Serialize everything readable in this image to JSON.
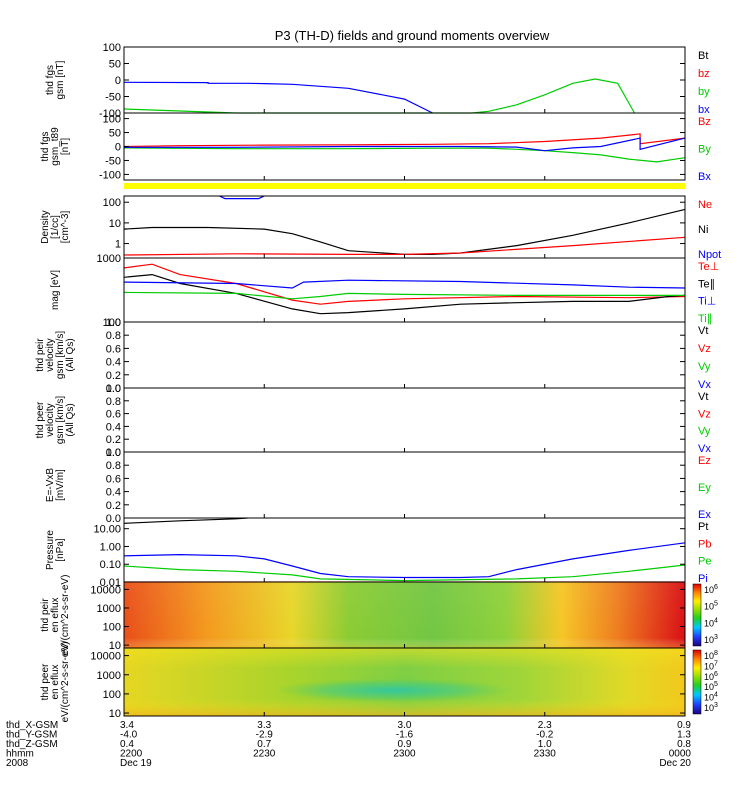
{
  "title": "P3 (TH-D) fields and ground moments overview",
  "chart_data": [
    {
      "type": "line",
      "ylabel": "thd fgs gsm [nT]",
      "ylim": [
        -100,
        100
      ],
      "yticks": [
        "100",
        "50",
        "0",
        "-50",
        "-100"
      ],
      "legend": [
        {
          "name": "Bt",
          "color": "#000000"
        },
        {
          "name": "bz",
          "color": "#ff0000"
        },
        {
          "name": "by",
          "color": "#00cc00"
        },
        {
          "name": "bx",
          "color": "#0000ff"
        }
      ],
      "series": [
        {
          "name": "bx",
          "color": "#0000ff",
          "x": [
            0,
            0.15,
            0.15,
            0.22,
            0.25,
            0.3,
            0.4,
            0.5,
            0.55
          ],
          "y": [
            -7,
            -8,
            -10,
            -10,
            -11,
            -13,
            -25,
            -58,
            -100
          ]
        },
        {
          "name": "by",
          "color": "#00cc00",
          "x": [
            0,
            0.1,
            0.2,
            0.3,
            0.62,
            0.65,
            0.7,
            0.75,
            0.8,
            0.84,
            0.88,
            0.91
          ],
          "y": [
            -88,
            -94,
            -100,
            -100,
            -100,
            -95,
            -75,
            -45,
            -10,
            3,
            -10,
            -100
          ]
        }
      ]
    },
    {
      "type": "line",
      "ylabel": "thd fgs gsm_t89 [nT]",
      "ylim": [
        -120,
        120
      ],
      "yticks": [
        "100",
        "50",
        "0",
        "-50",
        "-100"
      ],
      "legend": [
        {
          "name": "Bz",
          "color": "#ff0000"
        },
        {
          "name": "By",
          "color": "#00cc00"
        },
        {
          "name": "Bx",
          "color": "#0000ff"
        }
      ],
      "series": [
        {
          "name": "Bz",
          "color": "#ff0000",
          "x": [
            0,
            0.1,
            0.25,
            0.4,
            0.55,
            0.65,
            0.75,
            0.85,
            0.92,
            0.92,
            1.0
          ],
          "y": [
            0,
            3,
            5,
            6,
            8,
            10,
            18,
            30,
            45,
            10,
            30
          ]
        },
        {
          "name": "By",
          "color": "#00cc00",
          "x": [
            0,
            0.2,
            0.4,
            0.55,
            0.65,
            0.7,
            0.75,
            0.8,
            0.85,
            0.9,
            0.95,
            1.0
          ],
          "y": [
            -5,
            -8,
            -8,
            -6,
            -6,
            -10,
            -15,
            -22,
            -30,
            -45,
            -55,
            -40
          ]
        },
        {
          "name": "Bx",
          "color": "#0000ff",
          "x": [
            0,
            0.2,
            0.4,
            0.6,
            0.7,
            0.75,
            0.8,
            0.85,
            0.92,
            0.92,
            1.0
          ],
          "y": [
            -3,
            -3,
            0,
            0,
            -2,
            -15,
            -5,
            0,
            30,
            -10,
            30
          ]
        }
      ]
    },
    {
      "type": "line",
      "ylabel": "Density [1/cc] [cm^-3]",
      "yscale": "log",
      "ylim": [
        0.2,
        200
      ],
      "yticks": [
        "100",
        "10",
        "1"
      ],
      "legend": [
        {
          "name": "Ne",
          "color": "#ff0000"
        },
        {
          "name": "Ni",
          "color": "#000000"
        },
        {
          "name": "Npot",
          "color": "#0000ff"
        }
      ],
      "series": [
        {
          "name": "Ni",
          "color": "#000000",
          "x": [
            0,
            0.05,
            0.15,
            0.25,
            0.3,
            0.35,
            0.4,
            0.5,
            0.55,
            0.6,
            0.7,
            0.8,
            0.9,
            1.0
          ],
          "y": [
            5,
            6,
            6,
            5,
            3,
            1.2,
            0.45,
            0.3,
            0.3,
            0.35,
            0.8,
            2.5,
            10,
            45
          ]
        },
        {
          "name": "Ne",
          "color": "#ff0000",
          "x": [
            0,
            0.2,
            0.4,
            0.5,
            0.6,
            0.8,
            1.0
          ],
          "y": [
            0.28,
            0.32,
            0.3,
            0.3,
            0.35,
            0.8,
            2
          ]
        },
        {
          "name": "Npot",
          "color": "#0000ff",
          "x": [
            0.17,
            0.18,
            0.24,
            0.25
          ],
          "y": [
            200,
            150,
            150,
            200
          ]
        }
      ]
    },
    {
      "type": "line",
      "ylabel": "mag [eV]",
      "yscale": "log",
      "ylim": [
        100,
        1000
      ],
      "yticks": [
        "1000",
        "100"
      ],
      "legend": [
        {
          "name": "Te⊥",
          "color": "#ff0000"
        },
        {
          "name": "Te∥",
          "color": "#000000"
        },
        {
          "name": "Ti⊥",
          "color": "#0000ff"
        },
        {
          "name": "Ti∥",
          "color": "#00cc00"
        }
      ],
      "series": [
        {
          "name": "Te⊥",
          "color": "#ff0000",
          "x": [
            0,
            0.05,
            0.1,
            0.2,
            0.3,
            0.35,
            0.4,
            0.5,
            0.7,
            0.9,
            1.0
          ],
          "y": [
            700,
            800,
            550,
            400,
            220,
            190,
            210,
            230,
            250,
            240,
            250
          ]
        },
        {
          "name": "Te∥",
          "color": "#000000",
          "x": [
            0,
            0.05,
            0.1,
            0.2,
            0.3,
            0.35,
            0.4,
            0.5,
            0.6,
            0.7,
            0.8,
            0.9,
            0.97,
            1.0
          ],
          "y": [
            500,
            550,
            400,
            280,
            160,
            135,
            140,
            160,
            190,
            200,
            210,
            210,
            250,
            260
          ]
        },
        {
          "name": "Ti⊥",
          "color": "#0000ff",
          "x": [
            0,
            0.2,
            0.3,
            0.32,
            0.4,
            0.6,
            0.8,
            0.9,
            1.0
          ],
          "y": [
            420,
            400,
            340,
            420,
            450,
            430,
            380,
            350,
            340
          ]
        },
        {
          "name": "Ti∥",
          "color": "#00cc00",
          "x": [
            0,
            0.2,
            0.3,
            0.35,
            0.4,
            0.5,
            0.7,
            0.9,
            1.0
          ],
          "y": [
            290,
            280,
            230,
            250,
            280,
            270,
            260,
            260,
            260
          ]
        }
      ]
    },
    {
      "type": "line",
      "ylabel": "thd peir velocity gsm [km/s] (All Qs)",
      "ylim": [
        0,
        1
      ],
      "yticks": [
        "1.0",
        "0.8",
        "0.6",
        "0.4",
        "0.2",
        "0.0"
      ],
      "legend": [
        {
          "name": "Vt",
          "color": "#000000"
        },
        {
          "name": "Vz",
          "color": "#ff0000"
        },
        {
          "name": "Vy",
          "color": "#00cc00"
        },
        {
          "name": "Vx",
          "color": "#0000ff"
        }
      ],
      "series": []
    },
    {
      "type": "line",
      "ylabel": "thd peer velocity gsm [km/s] (All Qs)",
      "ylim": [
        0,
        1
      ],
      "yticks": [
        "1.0",
        "0.8",
        "0.6",
        "0.4",
        "0.2",
        "0.0"
      ],
      "legend": [
        {
          "name": "Vt",
          "color": "#000000"
        },
        {
          "name": "Vz",
          "color": "#ff0000"
        },
        {
          "name": "Vy",
          "color": "#00cc00"
        },
        {
          "name": "Vx",
          "color": "#0000ff"
        }
      ],
      "series": []
    },
    {
      "type": "line",
      "ylabel": "E=-VxB [mV/m]",
      "ylim": [
        0,
        1
      ],
      "yticks": [
        "1.0",
        "0.8",
        "0.6",
        "0.4",
        "0.2",
        "0.0"
      ],
      "legend": [
        {
          "name": "Ez",
          "color": "#ff0000"
        },
        {
          "name": "Ey",
          "color": "#00cc00"
        },
        {
          "name": "Ex",
          "color": "#0000ff"
        }
      ],
      "series": []
    },
    {
      "type": "line",
      "ylabel": "Pressure [nPa]",
      "yscale": "log",
      "ylim": [
        0.01,
        40
      ],
      "yticks": [
        "10.00",
        "1.00",
        "0.10",
        "0.01"
      ],
      "legend": [
        {
          "name": "Pt",
          "color": "#000000"
        },
        {
          "name": "Pb",
          "color": "#ff0000"
        },
        {
          "name": "Pe",
          "color": "#00cc00"
        },
        {
          "name": "Pi",
          "color": "#0000ff"
        }
      ],
      "series": [
        {
          "name": "Pt",
          "color": "#000000",
          "x": [
            0,
            0.1,
            0.2,
            0.22
          ],
          "y": [
            20,
            28,
            36,
            40
          ]
        },
        {
          "name": "Pi",
          "color": "#0000ff",
          "x": [
            0,
            0.1,
            0.2,
            0.25,
            0.3,
            0.35,
            0.4,
            0.5,
            0.6,
            0.65,
            0.7,
            0.8,
            0.9,
            1.0
          ],
          "y": [
            0.3,
            0.35,
            0.3,
            0.2,
            0.08,
            0.03,
            0.02,
            0.018,
            0.018,
            0.02,
            0.05,
            0.2,
            0.6,
            1.6
          ]
        },
        {
          "name": "Pe",
          "color": "#00cc00",
          "x": [
            0,
            0.1,
            0.2,
            0.3,
            0.35,
            0.5,
            0.7,
            0.8,
            0.9,
            1.0
          ],
          "y": [
            0.08,
            0.05,
            0.04,
            0.025,
            0.015,
            0.012,
            0.015,
            0.02,
            0.04,
            0.09
          ]
        },
        {
          "name": "Pb",
          "color": "#ff0000",
          "x": [
            0,
            0.5,
            1.0
          ],
          "y": [
            0.01,
            0.01,
            0.01
          ]
        }
      ]
    },
    {
      "type": "heatmap",
      "ylabel": "thd peir en eflux eV/(cm^2-s-sr-eV)",
      "yscale": "log",
      "ylim": [
        7,
        25000
      ],
      "yticks": [
        "10000",
        "1000",
        "100",
        "10"
      ],
      "colorbar": {
        "min_exp": 3,
        "max_exp": 6.5,
        "labels": [
          "10^6",
          "10^5",
          "10^4",
          "10^3"
        ]
      },
      "description": "ion energy flux spectrogram: red/orange at start and end, green in the middle"
    },
    {
      "type": "heatmap",
      "ylabel": "thd peer en eflux eV/(cm^2-s-sr-eV)",
      "yscale": "log",
      "ylim": [
        7,
        25000
      ],
      "yticks": [
        "10000",
        "1000",
        "100",
        "10"
      ],
      "colorbar": {
        "min_exp": 3,
        "max_exp": 8.5,
        "labels": [
          "10^8",
          "10^7",
          "10^6",
          "10^5",
          "10^4",
          "10^3"
        ]
      },
      "description": "electron energy flux spectrogram: yellow/green overall with cyan band in the middle"
    }
  ],
  "x_axis": {
    "ticks": [
      {
        "x": 0.0,
        "rows": [
          "3.4",
          "-4.0",
          "0.4",
          "2200",
          "Dec 19"
        ]
      },
      {
        "x": 0.25,
        "rows": [
          "3.3",
          "-2.9",
          "0.7",
          "2230",
          ""
        ]
      },
      {
        "x": 0.5,
        "rows": [
          "3.0",
          "-1.6",
          "0.9",
          "2300",
          ""
        ]
      },
      {
        "x": 0.75,
        "rows": [
          "2.3",
          "-0.2",
          "1.0",
          "2330",
          ""
        ]
      },
      {
        "x": 1.0,
        "rows": [
          "0.9",
          "1.3",
          "0.8",
          "0000",
          "Dec 20"
        ]
      }
    ],
    "row_labels": [
      "thd_X-GSM",
      "thd_Y-GSM",
      "thd_Z-GSM",
      "hhmm",
      "2008"
    ]
  }
}
